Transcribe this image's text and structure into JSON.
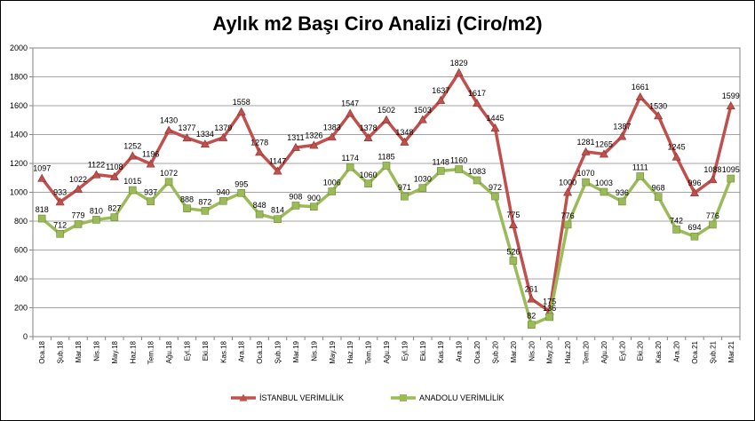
{
  "chart_data": {
    "type": "line",
    "title": "Aylık m2 Başı Ciro Analizi (Ciro/m2)",
    "xlabel": "",
    "ylabel": "",
    "ylim": [
      0,
      2000
    ],
    "yticks": [
      0,
      200,
      400,
      600,
      800,
      1000,
      1200,
      1400,
      1600,
      1800,
      2000
    ],
    "grid": true,
    "legend": "bottom",
    "categories": [
      "Oca.18",
      "Şub.18",
      "Mar.18",
      "Nis.18",
      "May.18",
      "Haz.18",
      "Tem.18",
      "Ağu.18",
      "Eyl.18",
      "Eki.18",
      "Kas.18",
      "Ara.18",
      "Oca.19",
      "Şub.19",
      "Mar.19",
      "Nis.19",
      "May.19",
      "Haz.19",
      "Tem.19",
      "Ağu.19",
      "Eyl.19",
      "Eki.19",
      "Kas.19",
      "Ara.19",
      "Oca.20",
      "Şub.20",
      "Mar.20",
      "Nis.20",
      "May.20",
      "Haz.20",
      "Tem.20",
      "Ağu.20",
      "Eyl.20",
      "Eki.20",
      "Kas.20",
      "Ara.20",
      "Oca.21",
      "Şub.21",
      "Mar.21"
    ],
    "series": [
      {
        "name": "İSTANBUL VERİMLİLİK",
        "color": "#c0504d",
        "marker": "triangle",
        "values": [
          1097,
          933,
          1022,
          1122,
          1108,
          1252,
          1196,
          1430,
          1377,
          1334,
          1379,
          1558,
          1278,
          1147,
          1311,
          1326,
          1383,
          1547,
          1378,
          1502,
          1348,
          1503,
          1637,
          1829,
          1617,
          1445,
          775,
          261,
          175,
          1000,
          1281,
          1265,
          1387,
          1661,
          1530,
          1245,
          996,
          1088,
          1599
        ],
        "labels": [
          "1097",
          "933",
          "1022",
          "1122",
          "1108",
          "1252",
          "1196",
          "1430",
          "1377",
          "1334",
          "1379",
          "1558",
          "1278",
          "1147",
          "1311",
          "1326",
          "1383",
          "1547",
          "1378",
          "1502",
          "1348",
          "1503",
          "1637",
          "1829",
          "1617",
          "1445",
          "775",
          "261",
          "175",
          "1000",
          "1281",
          "1265",
          "1387",
          "1661",
          "1530",
          "1245",
          "996",
          "1088",
          "1599"
        ]
      },
      {
        "name": "ANADOLU VERİMLİLİK",
        "color": "#9bbb59",
        "marker": "square",
        "values": [
          818,
          712,
          779,
          810,
          827,
          1015,
          937,
          1072,
          888,
          872,
          940,
          995,
          848,
          814,
          908,
          900,
          1006,
          1174,
          1060,
          1185,
          971,
          1030,
          1148,
          1160,
          1083,
          972,
          526,
          82,
          136,
          776,
          1070,
          1003,
          936,
          1111,
          968,
          742,
          694,
          776,
          1095
        ],
        "labels": [
          "818",
          "712",
          "779",
          "810",
          "827",
          "1015",
          "937",
          "1072",
          "888",
          "872",
          "940",
          "995",
          "848",
          "814",
          "908",
          "900",
          "1006",
          "1174",
          "1060",
          "1185",
          "971",
          "1030",
          "1148",
          "1160",
          "1083",
          "972",
          "526",
          "82",
          "136",
          "776",
          "1070",
          "1003",
          "936",
          "1111",
          "968",
          "742",
          "694",
          "776",
          "1095"
        ]
      }
    ]
  }
}
